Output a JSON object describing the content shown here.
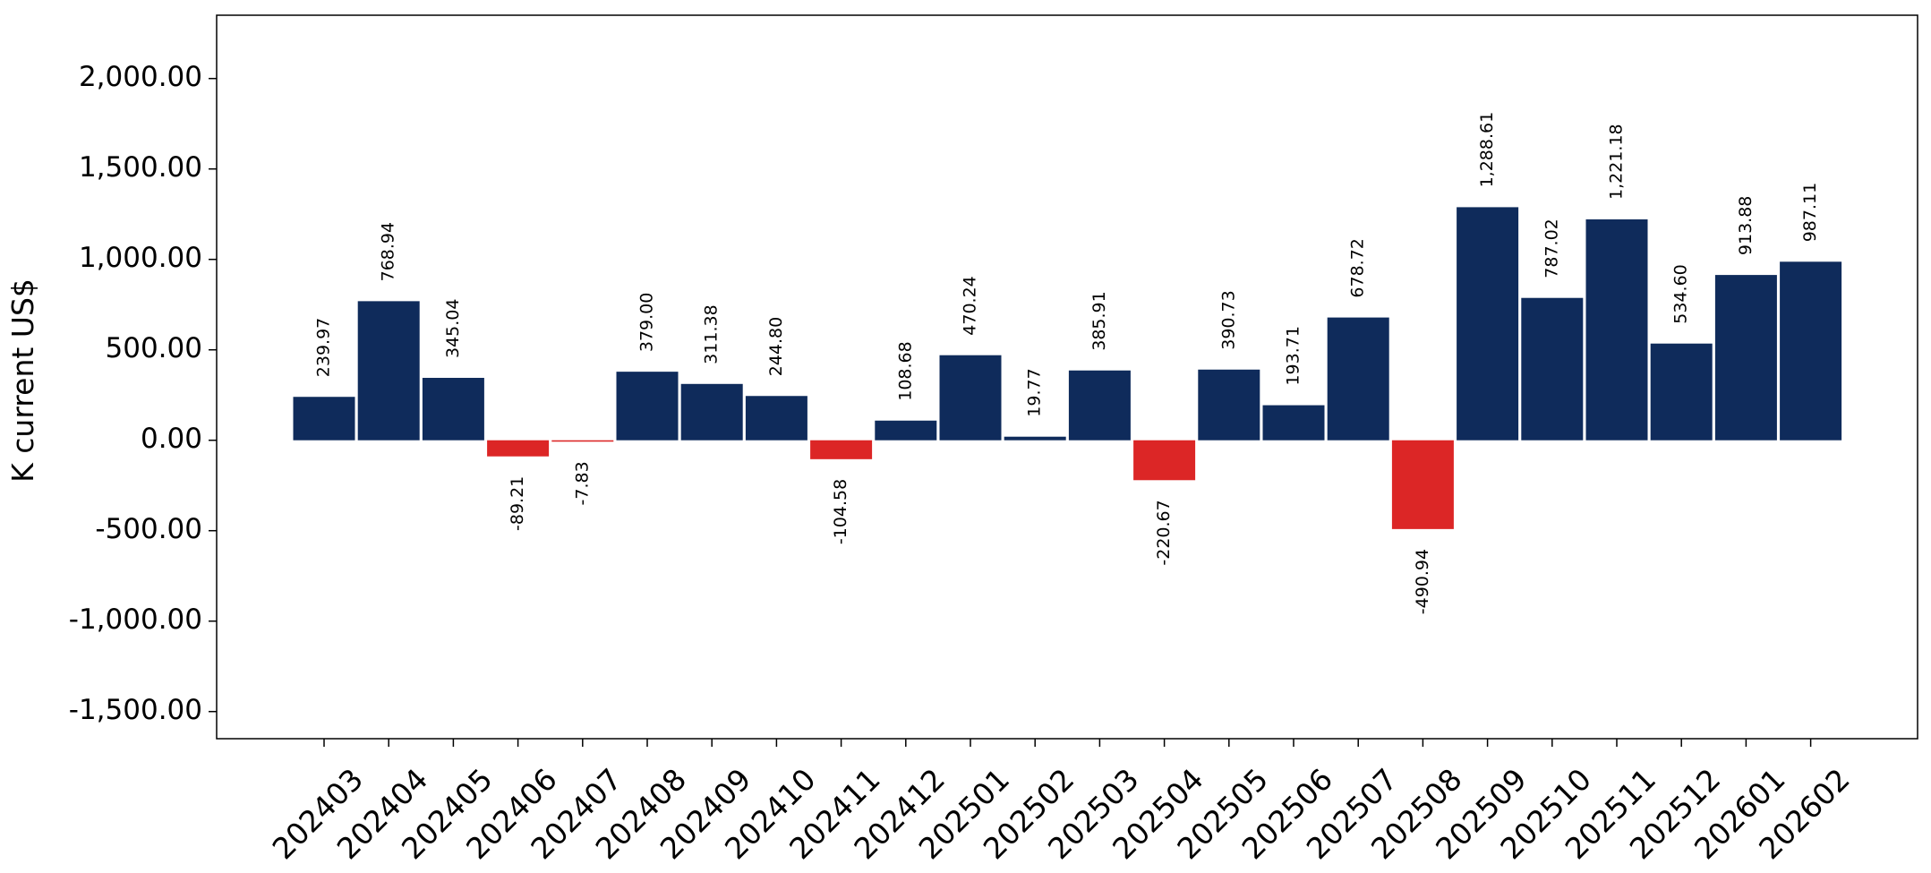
{
  "chart_data": {
    "type": "bar",
    "ylabel": "K current US$",
    "xlabel": "",
    "ylim": [
      -1650,
      2350
    ],
    "yticks": [
      -1500,
      -1000,
      -500,
      0,
      500,
      1000,
      1500,
      2000
    ],
    "ytick_labels": [
      "-1,500.00",
      "-1,000.00",
      "-500.00",
      "0.00",
      "500.00",
      "1,000.00",
      "1,500.00",
      "2,000.00"
    ],
    "grid": false,
    "categories": [
      "202403",
      "202404",
      "202405",
      "202406",
      "202407",
      "202408",
      "202409",
      "202410",
      "202411",
      "202412",
      "202501",
      "202502",
      "202503",
      "202504",
      "202505",
      "202506",
      "202507",
      "202508",
      "202509",
      "202510",
      "202511",
      "202512",
      "202601",
      "202602"
    ],
    "values": [
      239.97,
      768.94,
      345.04,
      -89.21,
      -7.83,
      379.0,
      311.38,
      244.8,
      -104.58,
      108.68,
      470.24,
      19.77,
      385.91,
      -220.67,
      390.73,
      193.71,
      678.72,
      -490.94,
      1288.61,
      787.02,
      1221.18,
      534.6,
      913.88,
      987.11
    ],
    "value_labels": [
      "239.97",
      "768.94",
      "345.04",
      "-89.21",
      "-7.83",
      "379.00",
      "311.38",
      "244.80",
      "-104.58",
      "108.68",
      "470.24",
      "19.77",
      "385.91",
      "-220.67",
      "390.73",
      "193.71",
      "678.72",
      "-490.94",
      "1,288.61",
      "787.02",
      "1,221.18",
      "534.60",
      "913.88",
      "987.11"
    ],
    "colors": {
      "positive": "#0f2b5b",
      "negative": "#dc2626"
    }
  }
}
